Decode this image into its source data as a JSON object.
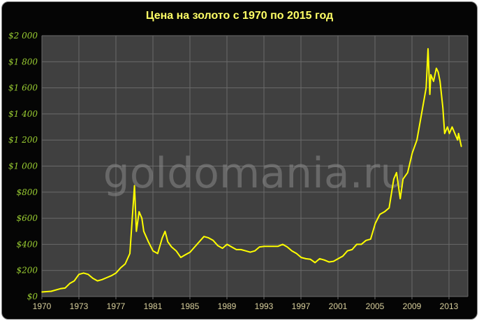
{
  "chart_data": {
    "type": "line",
    "title": "Цена на золото с 1970 по 2015 год",
    "watermark": "goldomania.ru",
    "xlabel": "",
    "ylabel": "",
    "ylim": [
      0,
      2000
    ],
    "y_ticks": [
      "$0",
      "$200",
      "$400",
      "$600",
      "$800",
      "$1 000",
      "$1 200",
      "$1 400",
      "$1 600",
      "$1 800",
      "$2 000"
    ],
    "x_ticks": [
      "1970",
      "1973",
      "1977",
      "1981",
      "1985",
      "1989",
      "1993",
      "1997",
      "2001",
      "2005",
      "2009",
      "2013"
    ],
    "grid": true,
    "colors": {
      "line": "#ffff00",
      "plot_bg": "#404040",
      "grid": "#6a6a6a",
      "background": "#050505"
    },
    "series": [
      {
        "x": [
          1970,
          1971,
          1972,
          1972.5,
          1973,
          1973.5,
          1974,
          1974.5,
          1975,
          1975.5,
          1976,
          1976.5,
          1977,
          1977.5,
          1978,
          1978.5,
          1979,
          1979.5,
          1980,
          1980.2,
          1980.5,
          1980.8,
          1981,
          1981.5,
          1982,
          1982.5,
          1983,
          1983.3,
          1983.6,
          1984,
          1984.5,
          1985,
          1985.5,
          1986,
          1986.5,
          1987,
          1987.5,
          1988,
          1988.5,
          1989,
          1989.5,
          1990,
          1990.5,
          1991,
          1991.5,
          1992,
          1992.5,
          1993,
          1993.5,
          1994,
          1994.5,
          1995,
          1995.5,
          1996,
          1996.5,
          1997,
          1997.5,
          1998,
          1998.5,
          1999,
          1999.5,
          2000,
          2000.5,
          2001,
          2001.5,
          2002,
          2002.5,
          2003,
          2003.5,
          2004,
          2004.5,
          2005,
          2005.5,
          2006,
          2006.5,
          2007,
          2007.5,
          2008,
          2008.3,
          2008.7,
          2009,
          2009.5,
          2010,
          2010.5,
          2011,
          2011.5,
          2011.7,
          2011.9,
          2012,
          2012.3,
          2012.6,
          2012.8,
          2013,
          2013.3,
          2013.5,
          2013.8,
          2014,
          2014.3,
          2014.6,
          2014.9,
          2015,
          2015.3
        ],
        "y": [
          35,
          40,
          60,
          65,
          100,
          120,
          170,
          180,
          170,
          140,
          120,
          130,
          145,
          160,
          180,
          220,
          250,
          330,
          850,
          500,
          650,
          600,
          500,
          420,
          350,
          330,
          450,
          500,
          420,
          380,
          350,
          300,
          320,
          340,
          380,
          420,
          460,
          450,
          430,
          390,
          370,
          400,
          380,
          360,
          360,
          350,
          340,
          350,
          380,
          385,
          385,
          385,
          385,
          400,
          380,
          350,
          330,
          300,
          290,
          285,
          260,
          290,
          280,
          265,
          270,
          290,
          310,
          350,
          360,
          400,
          400,
          430,
          440,
          560,
          630,
          650,
          680,
          900,
          950,
          750,
          900,
          950,
          1100,
          1200,
          1400,
          1600,
          1900,
          1550,
          1700,
          1650,
          1750,
          1720,
          1650,
          1450,
          1250,
          1300,
          1250,
          1300,
          1250,
          1200,
          1250,
          1150
        ]
      }
    ]
  }
}
